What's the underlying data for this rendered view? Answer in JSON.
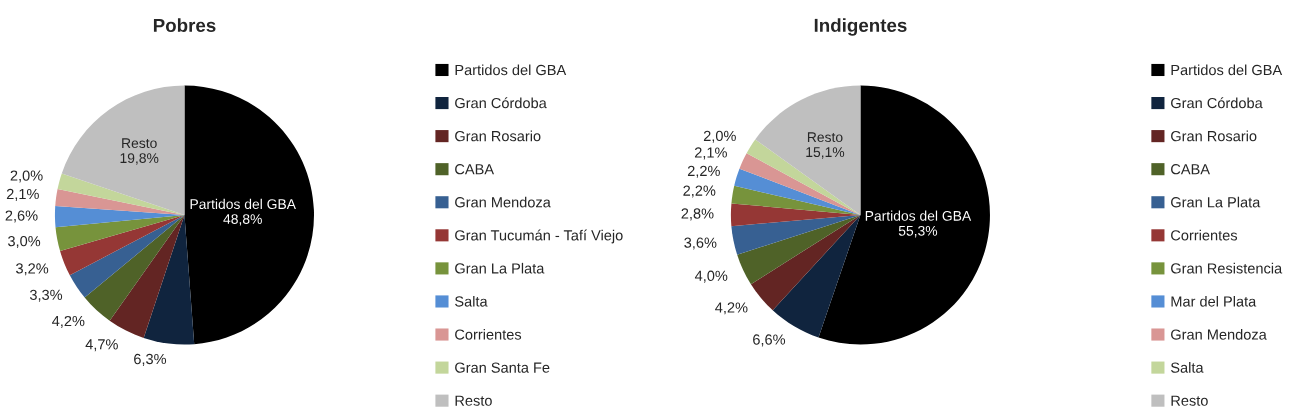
{
  "chart_data": [
    {
      "type": "pie",
      "title": "Pobres",
      "legend": "right",
      "categories": [
        "Partidos del GBA",
        "Gran Córdoba",
        "Gran Rosario",
        "CABA",
        "Gran Mendoza",
        "Gran Tucumán - Tafí Viejo",
        "Gran La Plata",
        "Salta",
        "Corrientes",
        "Gran Santa Fe",
        "Resto"
      ],
      "values": [
        48.8,
        6.3,
        4.7,
        4.2,
        3.3,
        3.2,
        3.0,
        2.6,
        2.1,
        2.0,
        19.8
      ],
      "value_labels": [
        "48,8%",
        "6,3%",
        "4,7%",
        "4,2%",
        "3,3%",
        "3,2%",
        "3,0%",
        "2,6%",
        "2,1%",
        "2,0%",
        "19,8%"
      ],
      "colors": [
        "#000000",
        "#10243e",
        "#632523",
        "#4f6228",
        "#376092",
        "#953735",
        "#77933c",
        "#558ed5",
        "#d99694",
        "#c3d69b",
        "#bfbfbf"
      ]
    },
    {
      "type": "pie",
      "title": "Indigentes",
      "legend": "right",
      "categories": [
        "Partidos del GBA",
        "Gran Córdoba",
        "Gran Rosario",
        "CABA",
        "Gran La Plata",
        "Corrientes",
        "Gran Resistencia",
        "Mar del Plata",
        "Gran Mendoza",
        "Salta",
        "Resto"
      ],
      "values": [
        55.3,
        6.6,
        4.2,
        4.0,
        3.6,
        2.8,
        2.2,
        2.2,
        2.1,
        2.0,
        15.1
      ],
      "value_labels": [
        "55,3%",
        "6,6%",
        "4,2%",
        "4,0%",
        "3,6%",
        "2,8%",
        "2,2%",
        "2,2%",
        "2,1%",
        "2,0%",
        "15,1%"
      ],
      "colors": [
        "#000000",
        "#10243e",
        "#632523",
        "#4f6228",
        "#376092",
        "#953735",
        "#77933c",
        "#558ed5",
        "#d99694",
        "#c3d69b",
        "#bfbfbf"
      ]
    }
  ]
}
